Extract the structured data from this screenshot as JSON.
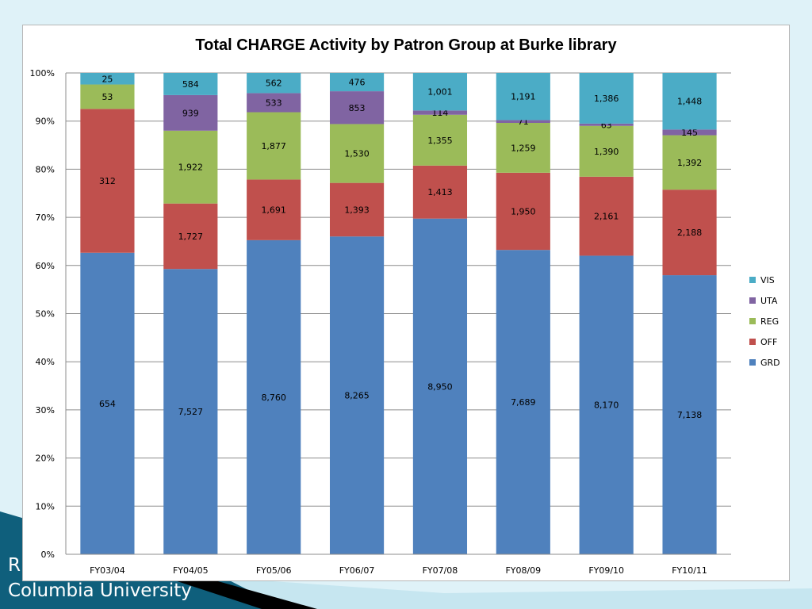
{
  "slide": {
    "footer_line1": "R",
    "footer_line2": "Columbia University"
  },
  "colors": {
    "GRD": "#4f81bd",
    "OFF": "#c0504d",
    "REG": "#9bbb59",
    "UTA": "#8064a2",
    "VIS": "#4bacc6"
  },
  "chart_data": {
    "type": "bar",
    "stacked": "percent",
    "title": "Total CHARGE Activity by Patron Group at Burke library",
    "xlabel": "",
    "ylabel": "",
    "ylim": [
      0,
      100
    ],
    "yticks": [
      "0%",
      "10%",
      "20%",
      "30%",
      "40%",
      "50%",
      "60%",
      "70%",
      "80%",
      "90%",
      "100%"
    ],
    "grid": true,
    "legend": "right",
    "legend_order": [
      "VIS",
      "UTA",
      "REG",
      "OFF",
      "GRD"
    ],
    "categories": [
      "FY03/04",
      "FY04/05",
      "FY05/06",
      "FY06/07",
      "FY07/08",
      "FY08/09",
      "FY09/10",
      "FY10/11"
    ],
    "series": [
      {
        "name": "GRD",
        "values": [
          654,
          7527,
          8760,
          8265,
          8950,
          7689,
          8170,
          7138
        ],
        "labels": [
          "654",
          "7,527",
          "8,760",
          "8,265",
          "8,950",
          "7,689",
          "8,170",
          "7,138"
        ]
      },
      {
        "name": "OFF",
        "values": [
          312,
          1727,
          1691,
          1393,
          1413,
          1950,
          2161,
          2188
        ],
        "labels": [
          "312",
          "1,727",
          "1,691",
          "1,393",
          "1,413",
          "1,950",
          "2,161",
          "2,188"
        ]
      },
      {
        "name": "REG",
        "values": [
          53,
          1922,
          1877,
          1530,
          1355,
          1259,
          1390,
          1392
        ],
        "labels": [
          "53",
          "1,922",
          "1,877",
          "1,530",
          "1,355",
          "1,259",
          "1,390",
          "1,392"
        ]
      },
      {
        "name": "UTA",
        "values": [
          0,
          939,
          533,
          853,
          114,
          71,
          63,
          145
        ],
        "labels": [
          "",
          "939",
          "533",
          "853",
          "114",
          "71",
          "63",
          "145"
        ]
      },
      {
        "name": "VIS",
        "values": [
          25,
          584,
          562,
          476,
          1001,
          1191,
          1386,
          1448
        ],
        "labels": [
          "25",
          "584",
          "562",
          "476",
          "1,001",
          "1,191",
          "1,386",
          "1,448"
        ]
      }
    ]
  }
}
